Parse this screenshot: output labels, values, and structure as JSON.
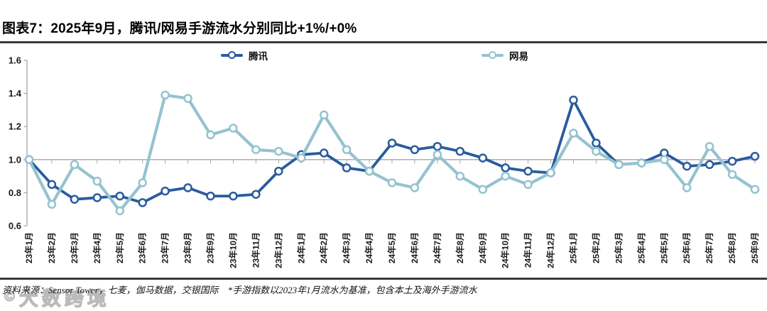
{
  "header": {
    "title": "图表7：2025年9月，腾讯/网易手游流水分别同比+1%/+0%"
  },
  "chart_data": {
    "type": "line",
    "title": "图表7：2025年9月，腾讯/网易手游流水分别同比+1%/+0%",
    "xlabel": "",
    "ylabel": "",
    "ylim": [
      0.6,
      1.6
    ],
    "yticks": [
      0.6,
      0.8,
      1.0,
      1.2,
      1.4,
      1.6
    ],
    "baseline": 1.0,
    "grid": false,
    "legend_position": "top",
    "axis_color": "#A6A6A6",
    "categories": [
      "23年1月",
      "23年2月",
      "23年3月",
      "23年4月",
      "23年5月",
      "23年6月",
      "23年7月",
      "23年8月",
      "23年9月",
      "23年10月",
      "23年11月",
      "23年12月",
      "24年1月",
      "24年2月",
      "24年3月",
      "24年4月",
      "24年5月",
      "24年6月",
      "24年7月",
      "24年8月",
      "24年9月",
      "24年10月",
      "24年11月",
      "24年12月",
      "25年1月",
      "25年2月",
      "25年3月",
      "25年4月",
      "25年5月",
      "25年6月",
      "25年7月",
      "25年8月",
      "25年9月"
    ],
    "series": [
      {
        "name": "腾讯",
        "color": "#2A5B9E",
        "stroke_width": 3.8,
        "values": [
          1.0,
          0.85,
          0.76,
          0.77,
          0.78,
          0.74,
          0.81,
          0.83,
          0.78,
          0.78,
          0.79,
          0.93,
          1.03,
          1.04,
          0.95,
          0.93,
          1.1,
          1.06,
          1.08,
          1.05,
          1.01,
          0.95,
          0.93,
          0.92,
          1.36,
          1.1,
          0.97,
          0.98,
          1.04,
          0.96,
          0.97,
          0.99,
          1.02
        ]
      },
      {
        "name": "网易",
        "color": "#94C3CF",
        "stroke_width": 4.2,
        "values": [
          1.0,
          0.73,
          0.97,
          0.87,
          0.69,
          0.86,
          1.39,
          1.37,
          1.15,
          1.19,
          1.06,
          1.05,
          1.01,
          1.27,
          1.06,
          0.93,
          0.86,
          0.83,
          1.03,
          0.9,
          0.82,
          0.9,
          0.85,
          0.92,
          1.16,
          1.05,
          0.97,
          0.98,
          1.0,
          0.83,
          1.08,
          0.91,
          0.82
        ]
      }
    ]
  },
  "footer": {
    "source": "资料来源：Sensor Tower，七麦，伽马数据，交银国际　*手游指数以2023年1月流水为基准，包含本土及海外手游流水"
  },
  "watermark": {
    "symbol": "©",
    "text": "大数跨境"
  }
}
